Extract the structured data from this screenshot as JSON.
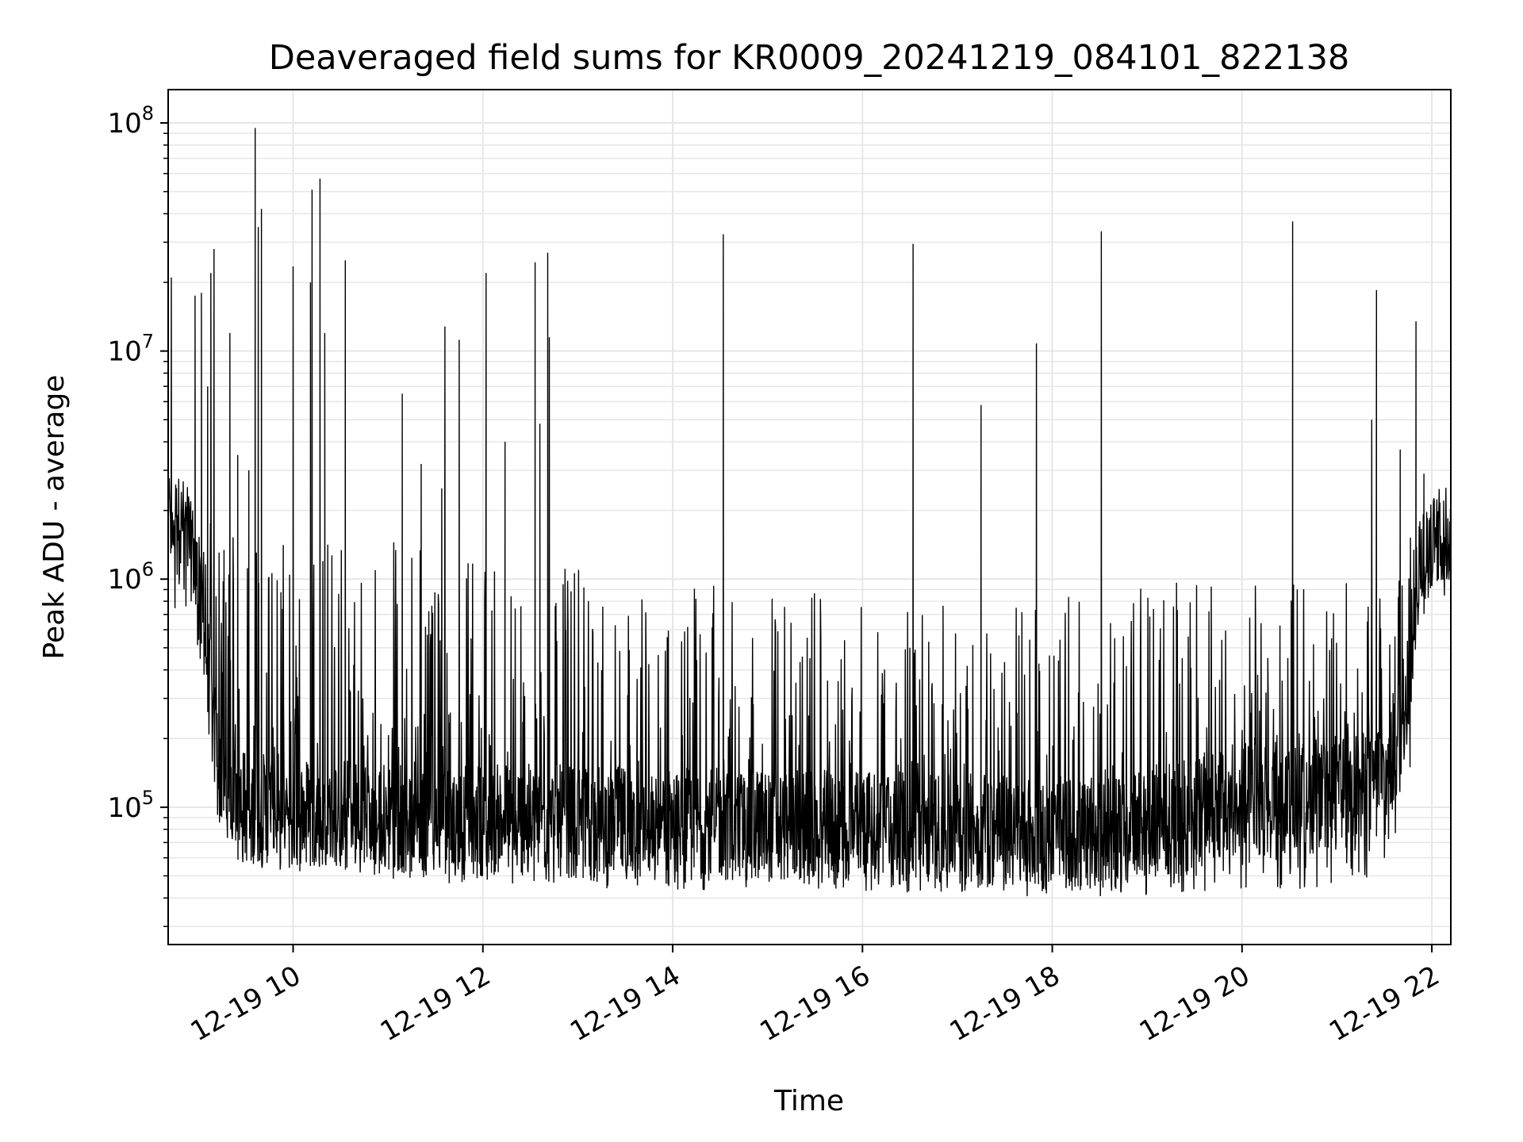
{
  "chart_data": {
    "type": "line",
    "title": "Deaveraged field sums for KR0009_20241219_084101_822138",
    "xlabel": "Time",
    "ylabel": "Peak ADU - average",
    "x_axis": {
      "type": "datetime",
      "range": [
        "2024-12-19 08:41",
        "2024-12-19 22:12"
      ],
      "ticks": [
        "2024-12-19 10:00",
        "2024-12-19 12:00",
        "2024-12-19 14:00",
        "2024-12-19 16:00",
        "2024-12-19 18:00",
        "2024-12-19 20:00",
        "2024-12-19 22:00"
      ],
      "tick_labels": [
        "12-19 10",
        "12-19 12",
        "12-19 14",
        "12-19 16",
        "12-19 18",
        "12-19 20",
        "12-19 22"
      ],
      "tick_label_rotation": 30
    },
    "y_axis": {
      "scale": "log",
      "range": [
        25000,
        140000000
      ],
      "ticks": [
        100000,
        1000000,
        10000000,
        100000000
      ],
      "tick_labels": [
        {
          "base": "10",
          "exponent": "5"
        },
        {
          "base": "10",
          "exponent": "6"
        },
        {
          "base": "10",
          "exponent": "7"
        },
        {
          "base": "10",
          "exponent": "8"
        }
      ]
    },
    "grid": true,
    "grid_color": "#e6e6e6",
    "line_color": "#000000",
    "series": [
      {
        "baseline": [
          [
            "2024-12-19 08:41",
            1800000
          ],
          [
            "2024-12-19 08:55",
            1500000
          ],
          [
            "2024-12-19 09:05",
            500000
          ],
          [
            "2024-12-19 09:12",
            150000
          ],
          [
            "2024-12-19 09:30",
            100000
          ],
          [
            "2024-12-19 11:00",
            90000
          ],
          [
            "2024-12-19 14:00",
            85000
          ],
          [
            "2024-12-19 17:00",
            80000
          ],
          [
            "2024-12-19 18:40",
            75000
          ],
          [
            "2024-12-19 20:00",
            110000
          ],
          [
            "2024-12-19 21:00",
            110000
          ],
          [
            "2024-12-19 21:35",
            150000
          ],
          [
            "2024-12-19 21:45",
            350000
          ],
          [
            "2024-12-19 21:52",
            1200000
          ],
          [
            "2024-12-19 22:12",
            1500000
          ]
        ],
        "upper_envelope": [
          [
            "2024-12-19 08:41",
            2500000
          ],
          [
            "2024-12-19 09:00",
            2000000
          ],
          [
            "2024-12-19 09:15",
            1600000
          ],
          [
            "2024-12-19 11:00",
            1600000
          ],
          [
            "2024-12-19 12:00",
            1300000
          ],
          [
            "2024-12-19 13:00",
            1100000
          ],
          [
            "2024-12-19 15:00",
            900000
          ],
          [
            "2024-12-19 16:00",
            850000
          ],
          [
            "2024-12-19 17:00",
            750000
          ],
          [
            "2024-12-19 18:00",
            900000
          ],
          [
            "2024-12-19 19:00",
            1000000
          ],
          [
            "2024-12-19 20:30",
            1000000
          ],
          [
            "2024-12-19 21:20",
            1100000
          ],
          [
            "2024-12-19 21:50",
            2000000
          ],
          [
            "2024-12-19 22:12",
            2800000
          ]
        ],
        "lower_envelope": [
          [
            "2024-12-19 08:41",
            350000
          ],
          [
            "2024-12-19 09:00",
            400000
          ],
          [
            "2024-12-19 09:20",
            55000
          ],
          [
            "2024-12-19 12:00",
            45000
          ],
          [
            "2024-12-19 16:00",
            42000
          ],
          [
            "2024-12-19 18:30",
            40000
          ],
          [
            "2024-12-19 20:30",
            42000
          ],
          [
            "2024-12-19 21:30",
            50000
          ],
          [
            "2024-12-19 21:45",
            80000
          ],
          [
            "2024-12-19 21:55",
            900000
          ],
          [
            "2024-12-19 22:12",
            1000000
          ]
        ],
        "peaks": [
          [
            "2024-12-19 08:43",
            21000000
          ],
          [
            "2024-12-19 08:58",
            17500000
          ],
          [
            "2024-12-19 09:02",
            18000000
          ],
          [
            "2024-12-19 09:06",
            7000000
          ],
          [
            "2024-12-19 09:08",
            22000000
          ],
          [
            "2024-12-19 09:10",
            28000000
          ],
          [
            "2024-12-19 09:20",
            12000000
          ],
          [
            "2024-12-19 09:25",
            3500000
          ],
          [
            "2024-12-19 09:32",
            3000000
          ],
          [
            "2024-12-19 09:36",
            95000000
          ],
          [
            "2024-12-19 09:38",
            35000000
          ],
          [
            "2024-12-19 09:40",
            42000000
          ],
          [
            "2024-12-19 10:00",
            23500000
          ],
          [
            "2024-12-19 10:11",
            20000000
          ],
          [
            "2024-12-19 10:12",
            51000000
          ],
          [
            "2024-12-19 10:17",
            57000000
          ],
          [
            "2024-12-19 10:20",
            12000000
          ],
          [
            "2024-12-19 10:33",
            25000000
          ],
          [
            "2024-12-19 11:09",
            6500000
          ],
          [
            "2024-12-19 11:21",
            3200000
          ],
          [
            "2024-12-19 11:34",
            2500000
          ],
          [
            "2024-12-19 11:36",
            12800000
          ],
          [
            "2024-12-19 11:45",
            11200000
          ],
          [
            "2024-12-19 12:02",
            22000000
          ],
          [
            "2024-12-19 12:14",
            4000000
          ],
          [
            "2024-12-19 12:33",
            24500000
          ],
          [
            "2024-12-19 12:36",
            4800000
          ],
          [
            "2024-12-19 12:41",
            27000000
          ],
          [
            "2024-12-19 12:42",
            11500000
          ],
          [
            "2024-12-19 14:32",
            32500000
          ],
          [
            "2024-12-19 16:32",
            29500000
          ],
          [
            "2024-12-19 17:15",
            5800000
          ],
          [
            "2024-12-19 17:50",
            10800000
          ],
          [
            "2024-12-19 18:31",
            33500000
          ],
          [
            "2024-12-19 20:32",
            37000000
          ],
          [
            "2024-12-19 21:22",
            5000000
          ],
          [
            "2024-12-19 21:25",
            18500000
          ],
          [
            "2024-12-19 21:40",
            3700000
          ],
          [
            "2024-12-19 21:50",
            13500000
          ],
          [
            "2024-12-19 21:55",
            2900000
          ]
        ]
      }
    ]
  }
}
